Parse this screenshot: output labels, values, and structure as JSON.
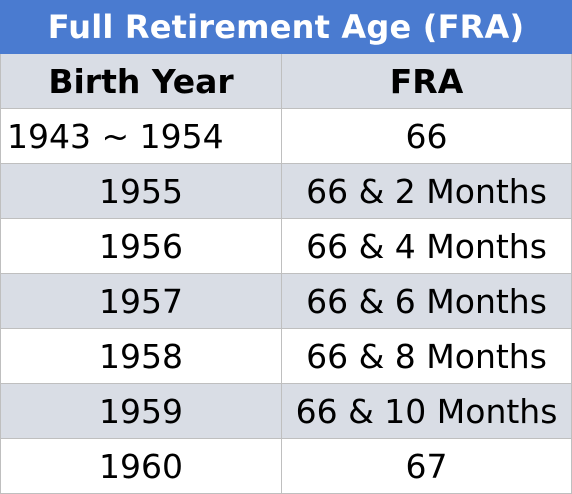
{
  "chart_data": {
    "type": "table",
    "title": "Full Retirement Age (FRA)",
    "columns": [
      "Birth Year",
      "FRA"
    ],
    "rows": [
      [
        "1943 ~ 1954",
        "66"
      ],
      [
        "1955",
        "66 & 2 Months"
      ],
      [
        "1956",
        "66 & 4 Months"
      ],
      [
        "1957",
        "66 & 6 Months"
      ],
      [
        "1958",
        "66 & 8 Months"
      ],
      [
        "1959",
        "66 & 10 Months"
      ],
      [
        "1960",
        "67"
      ]
    ]
  },
  "colors": {
    "title_background": "#4a7bd0",
    "title_text": "#ffffff",
    "header_background": "#d9dde5",
    "stripe_background": "#d9dde5",
    "plain_background": "#ffffff",
    "border": "#bfbfbf"
  }
}
